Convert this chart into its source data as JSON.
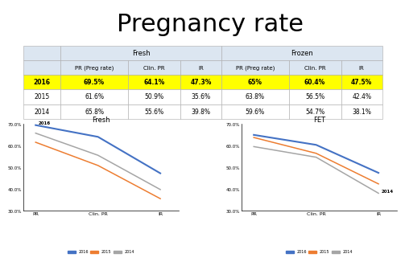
{
  "title": "Pregnancy rate",
  "title_fontsize": 22,
  "background_color": "#ffffff",
  "table": {
    "rows": [
      {
        "year": "2016",
        "highlight": true,
        "fresh_pr": "69.5%",
        "fresh_clin": "64.1%",
        "fresh_ir": "47.3%",
        "froz_pr": "65%",
        "froz_clin": "60.4%",
        "froz_ir": "47.5%"
      },
      {
        "year": "2015",
        "highlight": false,
        "fresh_pr": "61.6%",
        "fresh_clin": "50.9%",
        "fresh_ir": "35.6%",
        "froz_pr": "63.8%",
        "froz_clin": "56.5%",
        "froz_ir": "42.4%"
      },
      {
        "year": "2014",
        "highlight": false,
        "fresh_pr": "65.8%",
        "fresh_clin": "55.6%",
        "fresh_ir": "39.8%",
        "froz_pr": "59.6%",
        "froz_clin": "54.7%",
        "froz_ir": "38.1%"
      }
    ],
    "highlight_color": "#ffff00",
    "header_bg": "#dce6f1",
    "border_color": "#aaaaaa"
  },
  "fresh_chart": {
    "title": "Fresh",
    "x_labels": [
      "PR",
      "Clin. PR",
      "IR"
    ],
    "ylim": [
      0.3,
      0.7
    ],
    "yticks": [
      0.3,
      0.4,
      0.5,
      0.6,
      0.7
    ],
    "series": {
      "2016": [
        0.695,
        0.641,
        0.473
      ],
      "2015": [
        0.616,
        0.509,
        0.356
      ],
      "2014": [
        0.658,
        0.556,
        0.398
      ]
    },
    "colors": {
      "2016": "#4472c4",
      "2015": "#ed7d31",
      "2014": "#a5a5a5"
    }
  },
  "fet_chart": {
    "title": "FET",
    "x_labels": [
      "PR",
      "Clin. PR",
      "IR"
    ],
    "ylim": [
      0.3,
      0.7
    ],
    "yticks": [
      0.3,
      0.4,
      0.5,
      0.6,
      0.7
    ],
    "series": {
      "2016": [
        0.65,
        0.604,
        0.475
      ],
      "2015": [
        0.638,
        0.565,
        0.424
      ],
      "2014": [
        0.596,
        0.547,
        0.381
      ]
    },
    "colors": {
      "2016": "#4472c4",
      "2015": "#ed7d31",
      "2014": "#a5a5a5"
    }
  }
}
